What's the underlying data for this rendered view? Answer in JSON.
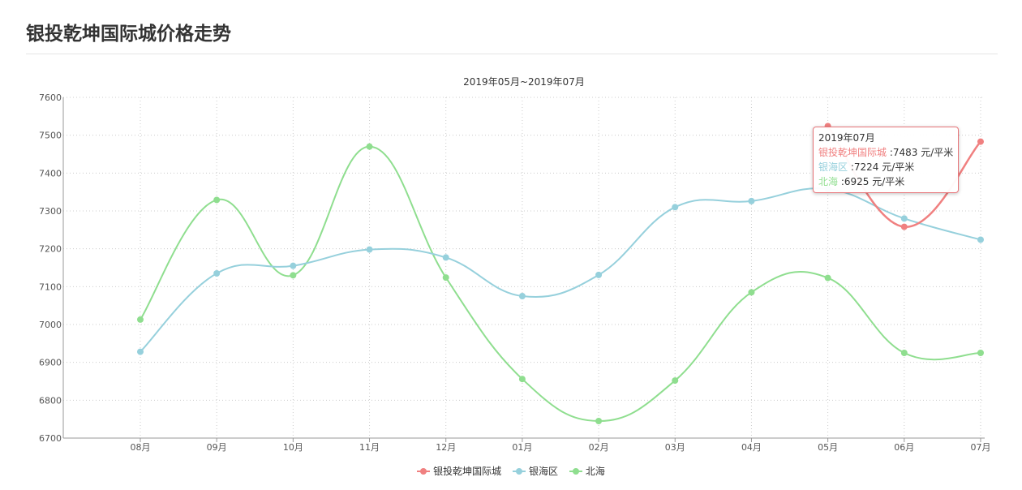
{
  "page": {
    "title": "银投乾坤国际城价格走势"
  },
  "chart_data": {
    "type": "line",
    "subtitle": "2019年05月~2019年07月",
    "categories": [
      "08月",
      "09月",
      "10月",
      "11月",
      "12月",
      "01月",
      "02月",
      "03月",
      "04月",
      "05月",
      "06月",
      "07月"
    ],
    "ylim": [
      6700,
      7600
    ],
    "yticks": [
      6700,
      6800,
      6900,
      7000,
      7100,
      7200,
      7300,
      7400,
      7500,
      7600
    ],
    "grid": true,
    "smooth": true,
    "legend_position": "bottom-center",
    "series": [
      {
        "name": "银投乾坤国际城",
        "color": "#f08080",
        "values": [
          null,
          null,
          null,
          null,
          null,
          null,
          null,
          null,
          null,
          7524,
          7258,
          7483
        ]
      },
      {
        "name": "银海区",
        "color": "#96d0dc",
        "values": [
          6928,
          7135,
          7155,
          7198,
          7177,
          7075,
          7131,
          7310,
          7326,
          7358,
          7280,
          7224
        ]
      },
      {
        "name": "北海",
        "color": "#8fde8f",
        "values": [
          7013,
          7329,
          7130,
          7470,
          7124,
          6856,
          6745,
          6852,
          7085,
          7123,
          6925,
          6925
        ]
      }
    ],
    "tooltip": {
      "title": "2019年07月",
      "unit": "元/平米",
      "rows": [
        {
          "name": "银投乾坤国际城",
          "value": "7483 元/平米",
          "color": "#f08080"
        },
        {
          "name": "银海区",
          "value": "7224 元/平米",
          "color": "#96d0dc"
        },
        {
          "name": "北海",
          "value": "6925 元/平米",
          "color": "#8fde8f"
        }
      ]
    }
  }
}
